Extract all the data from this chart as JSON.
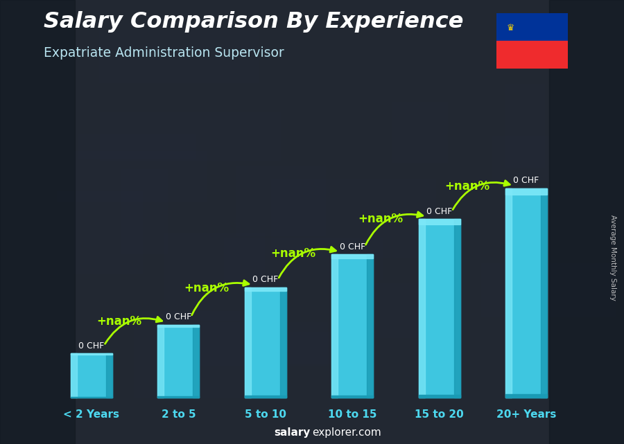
{
  "title": "Salary Comparison By Experience",
  "subtitle": "Expatriate Administration Supervisor",
  "categories": [
    "< 2 Years",
    "2 to 5",
    "5 to 10",
    "10 to 15",
    "15 to 20",
    "20+ Years"
  ],
  "heights": [
    1.0,
    1.65,
    2.5,
    3.25,
    4.05,
    4.75
  ],
  "bar_color_main": "#3ec6e0",
  "bar_color_light": "#7de8f8",
  "bar_color_dark": "#1a9bb5",
  "value_labels": [
    "0 CHF",
    "0 CHF",
    "0 CHF",
    "0 CHF",
    "0 CHF",
    "0 CHF"
  ],
  "pct_labels": [
    "+nan%",
    "+nan%",
    "+nan%",
    "+nan%",
    "+nan%"
  ],
  "title_color": "#ffffff",
  "subtitle_color": "#b8e4f0",
  "xlabel_color": "#4dd9f0",
  "bg_color": "#1c2333",
  "overlay_color": "#1c2333",
  "ylabel_text": "Average Monthly Salary",
  "footer_bold": "salary",
  "footer_normal": "explorer.com",
  "green_color": "#aaff00",
  "arrow_color": "#aaff00",
  "flag_blue": "#003399",
  "flag_red": "#EF2B2D"
}
